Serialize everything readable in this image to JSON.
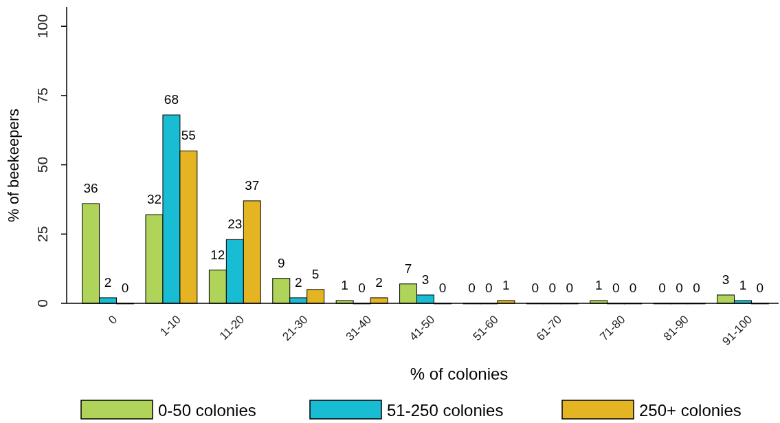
{
  "chart_data": {
    "type": "bar",
    "xlabel": "% of colonies",
    "ylabel": "% of beekeepers",
    "categories": [
      "0",
      "1-10",
      "11-20",
      "21-30",
      "31-40",
      "41-50",
      "51-60",
      "61-70",
      "71-80",
      "81-90",
      "91-100"
    ],
    "series": [
      {
        "name": "0-50 colonies",
        "color": "#b0d45a",
        "values": [
          36,
          32,
          12,
          9,
          1,
          7,
          0,
          0,
          1,
          0,
          3
        ]
      },
      {
        "name": "51-250 colonies",
        "color": "#19bdd3",
        "values": [
          2,
          68,
          23,
          2,
          0,
          3,
          0,
          0,
          0,
          0,
          1
        ]
      },
      {
        "name": "250+ colonies",
        "color": "#e5b423",
        "values": [
          0,
          55,
          37,
          5,
          2,
          0,
          1,
          0,
          0,
          0,
          0
        ]
      }
    ],
    "ylim": [
      0,
      107
    ],
    "yticks": [
      0,
      25,
      50,
      75,
      100
    ],
    "grid": false,
    "legend": "bottom",
    "data_labels": true
  }
}
